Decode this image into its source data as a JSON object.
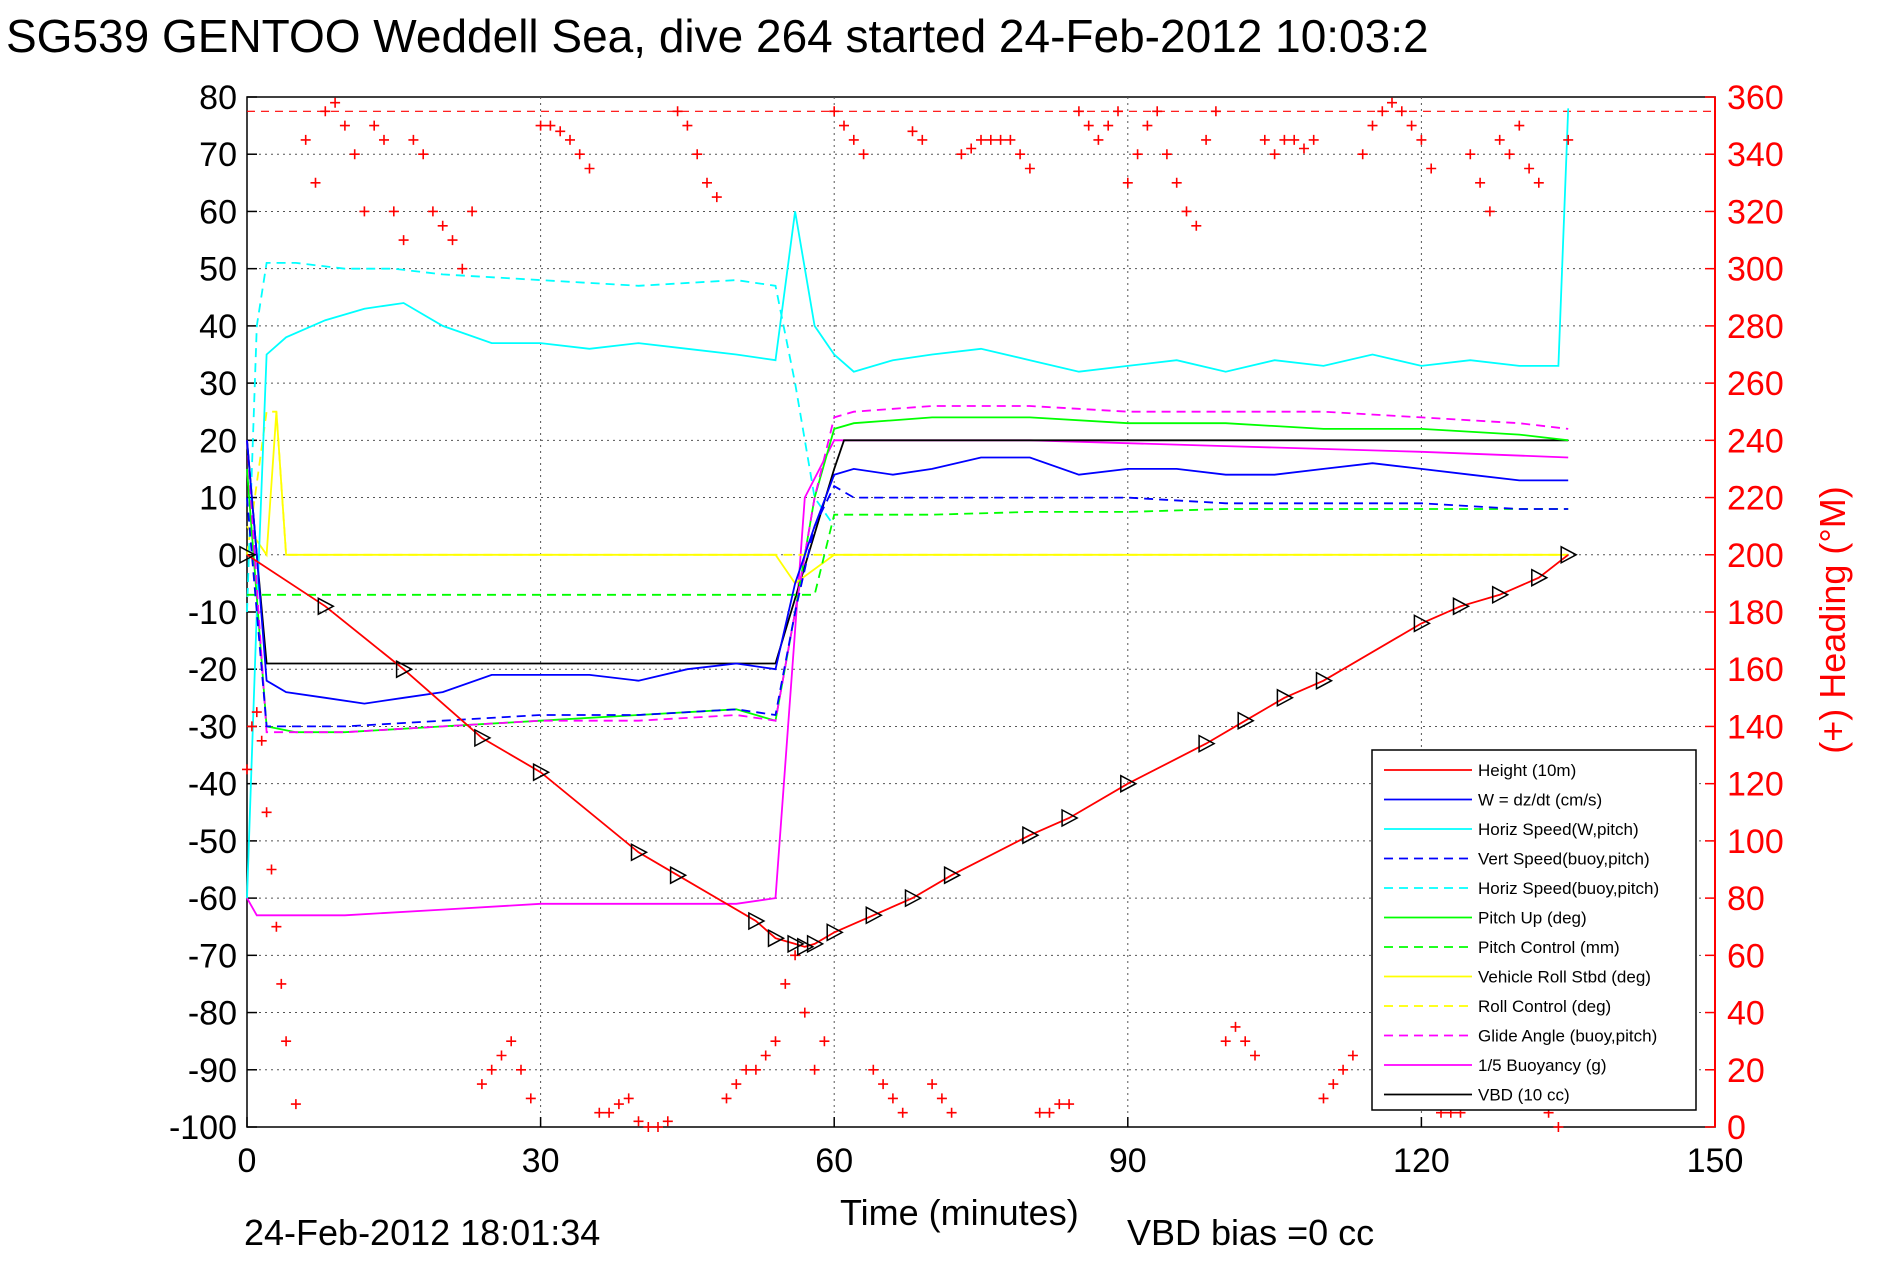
{
  "chart_data": {
    "type": "line",
    "title": "SG539 GENTOO Weddell Sea, dive 264 started 24-Feb-2012 10:03:2",
    "xlabel": "Time (minutes)",
    "ylabel": "",
    "ylabel_right": "(+) Heading (°M)",
    "footer_left": "24-Feb-2012 18:01:34",
    "footer_right": "VBD bias =0 cc",
    "xlim": [
      0,
      150
    ],
    "ylim": [
      -100,
      80
    ],
    "ylim_right": [
      0,
      360
    ],
    "x_ticks": [
      "0",
      "30",
      "60",
      "90",
      "120",
      "150"
    ],
    "y_ticks": [
      "80",
      "70",
      "60",
      "50",
      "40",
      "30",
      "20",
      "10",
      "0",
      "-10",
      "-20",
      "-30",
      "-40",
      "-50",
      "-60",
      "-70",
      "-80",
      "-90",
      "-100"
    ],
    "y_ticks_right": [
      "360",
      "340",
      "320",
      "300",
      "280",
      "260",
      "240",
      "220",
      "200",
      "180",
      "160",
      "140",
      "120",
      "100",
      "80",
      "60",
      "40",
      "20",
      "0"
    ],
    "grid": true,
    "legend_position": "bottom-right",
    "heading_reference_right": 355,
    "series": [
      {
        "name": "Height (10m)",
        "color": "#ff0000",
        "style": "solid",
        "x": [
          0,
          8,
          16,
          24,
          30,
          40,
          44,
          52,
          54,
          56,
          57,
          58,
          60,
          64,
          68,
          72,
          80,
          84,
          90,
          98,
          102,
          106,
          110,
          120,
          124,
          128,
          132,
          135
        ],
        "y": [
          0,
          -9,
          -20,
          -32,
          -38,
          -52,
          -56,
          -64,
          -67,
          -68,
          -68.5,
          -68,
          -66,
          -63,
          -60,
          -56,
          -49,
          -46,
          -40,
          -33,
          -29,
          -25,
          -22,
          -12,
          -9,
          -7,
          -4,
          0
        ]
      },
      {
        "name": "W = dz/dt (cm/s)",
        "color": "#0000ff",
        "style": "solid",
        "x": [
          0,
          1,
          2,
          4,
          8,
          12,
          16,
          20,
          25,
          30,
          35,
          40,
          45,
          50,
          54,
          56,
          58,
          60,
          62,
          66,
          70,
          75,
          80,
          85,
          90,
          95,
          100,
          105,
          110,
          115,
          120,
          125,
          130,
          135
        ],
        "y": [
          20,
          0,
          -22,
          -24,
          -25,
          -26,
          -25,
          -24,
          -21,
          -21,
          -21,
          -22,
          -20,
          -19,
          -20,
          -5,
          5,
          14,
          15,
          14,
          15,
          17,
          17,
          14,
          15,
          15,
          14,
          14,
          15,
          16,
          15,
          14,
          13,
          13
        ]
      },
      {
        "name": "Horiz Speed(W,pitch)",
        "color": "#00ffff",
        "style": "solid",
        "x": [
          0,
          1,
          2,
          4,
          8,
          12,
          16,
          20,
          25,
          30,
          35,
          40,
          45,
          50,
          54,
          56,
          58,
          60,
          62,
          66,
          70,
          75,
          80,
          85,
          90,
          95,
          100,
          105,
          110,
          115,
          120,
          125,
          130,
          134,
          135
        ],
        "y": [
          -60,
          -10,
          35,
          38,
          41,
          43,
          44,
          40,
          37,
          37,
          36,
          37,
          36,
          35,
          34,
          60,
          40,
          35,
          32,
          34,
          35,
          36,
          34,
          32,
          33,
          34,
          32,
          34,
          33,
          35,
          33,
          34,
          33,
          33,
          78
        ]
      },
      {
        "name": "Vert Speed(buoy,pitch)",
        "color": "#0000ff",
        "style": "dashed",
        "x": [
          0,
          2,
          4,
          10,
          20,
          30,
          40,
          50,
          54,
          56,
          58,
          60,
          62,
          70,
          80,
          90,
          100,
          110,
          120,
          130,
          135
        ],
        "y": [
          10,
          -30,
          -30,
          -30,
          -29,
          -28,
          -28,
          -27,
          -28,
          -10,
          5,
          12,
          10,
          10,
          10,
          10,
          9,
          9,
          9,
          8,
          8
        ]
      },
      {
        "name": "Horiz Speed(buoy,pitch)",
        "color": "#00ffff",
        "style": "dashed",
        "x": [
          0,
          1,
          2,
          5,
          10,
          15,
          20,
          30,
          40,
          50,
          54,
          56,
          58,
          60
        ],
        "y": [
          -10,
          40,
          51,
          51,
          50,
          50,
          49,
          48,
          47,
          48,
          47,
          30,
          10,
          5
        ]
      },
      {
        "name": "Pitch Up (deg)",
        "color": "#00ff00",
        "style": "solid",
        "x": [
          0,
          2,
          5,
          10,
          20,
          30,
          40,
          50,
          54,
          56,
          58,
          60,
          62,
          70,
          80,
          90,
          100,
          110,
          120,
          130,
          135
        ],
        "y": [
          15,
          -30,
          -31,
          -31,
          -30,
          -29,
          -28,
          -27,
          -29,
          -10,
          10,
          22,
          23,
          24,
          24,
          23,
          23,
          22,
          22,
          21,
          20
        ]
      },
      {
        "name": "Pitch Control (mm)",
        "color": "#00ff00",
        "style": "dashed",
        "x": [
          0,
          2,
          10,
          20,
          30,
          40,
          50,
          54,
          58,
          60,
          62,
          70,
          80,
          90,
          100,
          110,
          120,
          130,
          135
        ],
        "y": [
          -7,
          -7,
          -7,
          -7,
          -7,
          -7,
          -7,
          -7,
          -7,
          7,
          7,
          7,
          7.5,
          7.5,
          8,
          8,
          8,
          8,
          8
        ]
      },
      {
        "name": "Vehicle Roll Stbd (deg)",
        "color": "#ffff00",
        "style": "solid",
        "x": [
          0,
          2,
          3,
          4,
          8,
          10,
          20,
          30,
          40,
          50,
          54,
          56,
          60,
          70,
          80,
          90,
          100,
          110,
          120,
          130,
          135
        ],
        "y": [
          5,
          0,
          25,
          0,
          0,
          0,
          0,
          0,
          0,
          0,
          0,
          -5,
          0,
          0,
          0,
          0,
          0,
          0,
          0,
          0,
          0
        ]
      },
      {
        "name": "Roll Control (deg)",
        "color": "#ffff00",
        "style": "dashed",
        "x": [
          0,
          2,
          3,
          4,
          10,
          20,
          30,
          40,
          50,
          60,
          70,
          80,
          90,
          100,
          110,
          120,
          130,
          135
        ],
        "y": [
          0,
          25,
          25,
          0,
          0,
          0,
          0,
          0,
          0,
          0,
          0,
          0,
          0,
          0,
          0,
          0,
          0,
          0
        ]
      },
      {
        "name": "Glide Angle (buoy,pitch)",
        "color": "#ff00ff",
        "style": "dashed",
        "x": [
          0,
          2,
          5,
          10,
          20,
          30,
          40,
          50,
          54,
          56,
          58,
          60,
          62,
          70,
          80,
          90,
          100,
          110,
          120,
          130,
          135
        ],
        "y": [
          20,
          -31,
          -31,
          -31,
          -30,
          -29,
          -29,
          -28,
          -29,
          -10,
          10,
          24,
          25,
          26,
          26,
          25,
          25,
          25,
          24,
          23,
          22
        ]
      },
      {
        "name": "1/5 Buoyancy (g)",
        "color": "#ff00ff",
        "style": "solid",
        "x": [
          0,
          1,
          2,
          10,
          20,
          30,
          40,
          50,
          54,
          57,
          60,
          62,
          80,
          100,
          120,
          135
        ],
        "y": [
          -60,
          -63,
          -63,
          -63,
          -62,
          -61,
          -61,
          -61,
          -60,
          10,
          20,
          20,
          20,
          19,
          18,
          17
        ]
      },
      {
        "name": "VBD (10 cc)",
        "color": "#000000",
        "style": "solid",
        "x": [
          0,
          1,
          2,
          10,
          20,
          30,
          40,
          50,
          54,
          60,
          61,
          80,
          100,
          120,
          135
        ],
        "y": [
          20,
          0,
          -19,
          -19,
          -19,
          -19,
          -19,
          -19,
          -19,
          15,
          20,
          20,
          20,
          20,
          20
        ]
      }
    ],
    "heading_series": {
      "name": "Heading",
      "color": "#ff0000",
      "marker": "+",
      "axis": "right",
      "x": [
        0,
        0.5,
        1,
        1.5,
        2,
        2.5,
        3,
        3.5,
        4,
        5,
        6,
        7,
        8,
        9,
        10,
        11,
        12,
        13,
        14,
        15,
        16,
        17,
        18,
        19,
        20,
        21,
        22,
        23,
        24,
        25,
        26,
        27,
        28,
        29,
        30,
        31,
        32,
        33,
        34,
        35,
        36,
        37,
        38,
        39,
        40,
        41,
        42,
        43,
        44,
        45,
        46,
        47,
        48,
        49,
        50,
        51,
        52,
        53,
        54,
        55,
        56,
        57,
        58,
        59,
        60,
        61,
        62,
        63,
        64,
        65,
        66,
        67,
        68,
        69,
        70,
        71,
        72,
        73,
        74,
        75,
        76,
        77,
        78,
        79,
        80,
        81,
        82,
        83,
        84,
        85,
        86,
        87,
        88,
        89,
        90,
        91,
        92,
        93,
        94,
        95,
        96,
        97,
        98,
        99,
        100,
        101,
        102,
        103,
        104,
        105,
        106,
        107,
        108,
        109,
        110,
        111,
        112,
        113,
        114,
        115,
        116,
        117,
        118,
        119,
        120,
        121,
        122,
        123,
        124,
        125,
        126,
        127,
        128,
        129,
        130,
        131,
        132,
        133,
        134,
        135
      ],
      "y": [
        125,
        140,
        145,
        135,
        110,
        90,
        70,
        50,
        30,
        8,
        345,
        330,
        355,
        358,
        350,
        340,
        320,
        350,
        345,
        320,
        310,
        345,
        340,
        320,
        315,
        310,
        300,
        320,
        15,
        20,
        25,
        30,
        20,
        10,
        350,
        350,
        348,
        345,
        340,
        335,
        5,
        5,
        8,
        10,
        2,
        0,
        0,
        2,
        355,
        350,
        340,
        330,
        325,
        10,
        15,
        20,
        20,
        25,
        30,
        50,
        60,
        40,
        20,
        30,
        355,
        350,
        345,
        340,
        20,
        15,
        10,
        5,
        348,
        345,
        15,
        10,
        5,
        340,
        342,
        345,
        345,
        345,
        345,
        340,
        335,
        5,
        5,
        8,
        8,
        355,
        350,
        345,
        350,
        355,
        330,
        340,
        350,
        355,
        340,
        330,
        320,
        315,
        345,
        355,
        30,
        35,
        30,
        25,
        345,
        340,
        345,
        345,
        342,
        345,
        10,
        15,
        20,
        25,
        340,
        350,
        355,
        358,
        355,
        350,
        345,
        335,
        5,
        5,
        5,
        340,
        330,
        320,
        345,
        340,
        350,
        335,
        330,
        5,
        0,
        345
      ]
    }
  }
}
